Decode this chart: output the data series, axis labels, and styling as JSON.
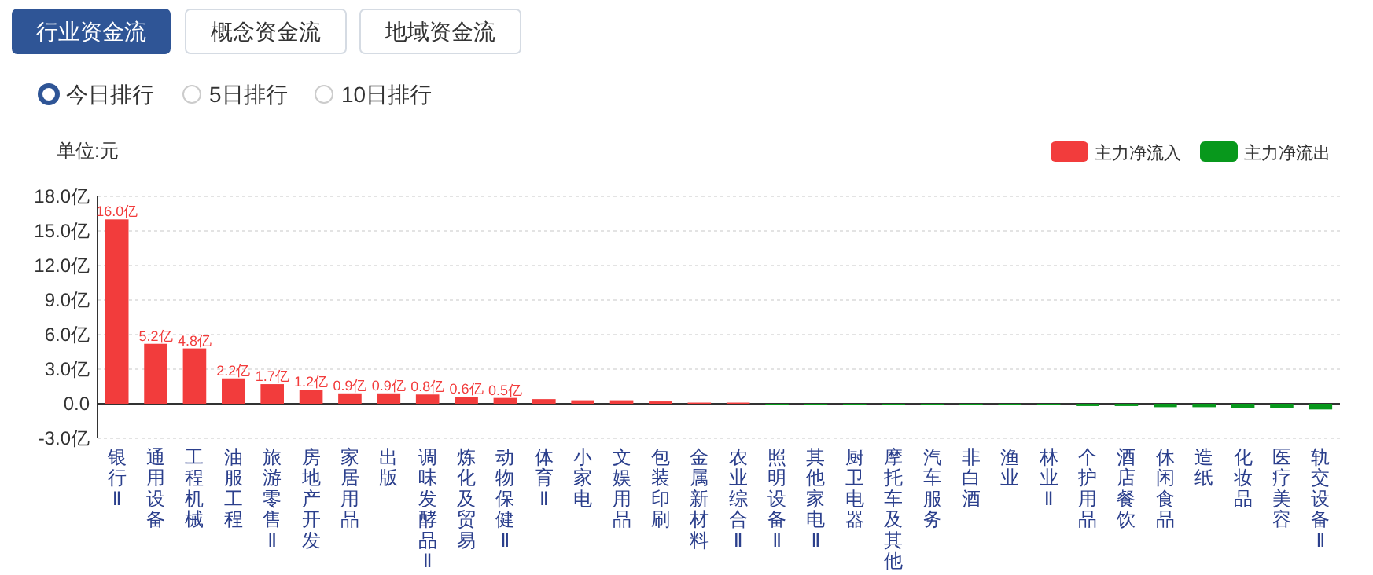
{
  "chart_data": {
    "type": "bar",
    "ylabel": "单位:元",
    "annotations": [
      "行业资金流",
      "概念资金流",
      "地域资金流",
      "今日排行",
      "5日排行",
      "10日排行"
    ],
    "categories": [
      "银行Ⅱ",
      "通用设备",
      "工程机械",
      "油服工程",
      "旅游零售Ⅱ",
      "房地产开发",
      "家居用品",
      "出版",
      "调味发酵品Ⅱ",
      "炼化及贸易",
      "动物保健Ⅱ",
      "体育Ⅱ",
      "小家电",
      "文娱用品",
      "包装印刷",
      "金属新材料",
      "农业综合Ⅱ",
      "照明设备Ⅱ",
      "其他家电Ⅱ",
      "厨卫电器",
      "摩托车及其他",
      "汽车服务",
      "非白酒",
      "渔业",
      "林业Ⅱ",
      "个护用品",
      "酒店餐饮",
      "休闲食品",
      "造纸",
      "化妆品",
      "医疗美容",
      "轨交设备Ⅱ"
    ],
    "series": [
      {
        "name": "主力净流入",
        "color": "#f23c3c",
        "values": [
          16.0,
          5.2,
          4.8,
          2.2,
          1.7,
          1.2,
          0.9,
          0.9,
          0.8,
          0.6,
          0.5,
          0.4,
          0.3,
          0.3,
          0.2,
          0.1,
          0.1,
          null,
          null,
          null,
          null,
          null,
          null,
          null,
          null,
          null,
          null,
          null,
          null,
          null,
          null,
          null
        ],
        "value_labels": [
          "16.0亿",
          "5.2亿",
          "4.8亿",
          "2.2亿",
          "1.7亿",
          "1.2亿",
          "0.9亿",
          "0.9亿",
          "0.8亿",
          "0.6亿",
          "0.5亿",
          null,
          null,
          null,
          null,
          null,
          null,
          null,
          null,
          null,
          null,
          null,
          null,
          null,
          null,
          null,
          null,
          null,
          null,
          null,
          null,
          null
        ]
      },
      {
        "name": "主力净流出",
        "color": "#08981c",
        "values": [
          null,
          null,
          null,
          null,
          null,
          null,
          null,
          null,
          null,
          null,
          null,
          null,
          null,
          null,
          null,
          null,
          null,
          -0.1,
          -0.1,
          -0.1,
          -0.1,
          -0.1,
          -0.1,
          -0.1,
          -0.1,
          -0.2,
          -0.2,
          -0.3,
          -0.3,
          -0.4,
          -0.4,
          -0.5
        ]
      }
    ],
    "ylim": [
      -3,
      18
    ],
    "yticks": [
      {
        "value": -3,
        "label": "-3.0亿"
      },
      {
        "value": 0,
        "label": "0.0"
      },
      {
        "value": 3,
        "label": "3.0亿"
      },
      {
        "value": 6,
        "label": "6.0亿"
      },
      {
        "value": 9,
        "label": "9.0亿"
      },
      {
        "value": 12,
        "label": "12.0亿"
      },
      {
        "value": 15,
        "label": "15.0亿"
      },
      {
        "value": 18,
        "label": "18.0亿"
      }
    ],
    "grid": "y",
    "legend": "top right"
  }
}
